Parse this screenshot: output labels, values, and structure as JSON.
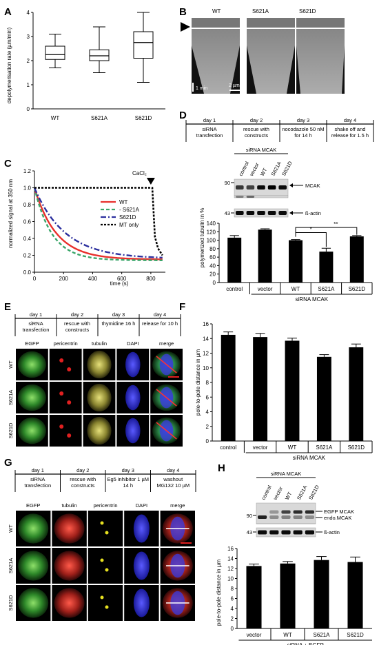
{
  "panels": {
    "A": "A",
    "B": "B",
    "C": "C",
    "D": "D",
    "E": "E",
    "F": "F",
    "G": "G",
    "H": "H"
  },
  "panel_a": {
    "chart_data": {
      "type": "boxplot",
      "categories": [
        "WT",
        "S621A",
        "S621D"
      ],
      "boxes": [
        {
          "name": "WT",
          "min": 1.7,
          "q1": 2.05,
          "median": 2.25,
          "q3": 2.6,
          "max": 3.1
        },
        {
          "name": "S621A",
          "min": 1.5,
          "q1": 2.0,
          "median": 2.2,
          "q3": 2.45,
          "max": 3.4
        },
        {
          "name": "S621D",
          "min": 1.1,
          "q1": 2.1,
          "median": 2.75,
          "q3": 3.2,
          "max": 4.0
        }
      ],
      "ylabel": "depolymerisation rate (µm/min)",
      "ylim": [
        0,
        4
      ],
      "yticks": [
        "0",
        "1",
        "2",
        "3",
        "4"
      ]
    }
  },
  "panel_b": {
    "labels": [
      "WT",
      "S621A",
      "S621D"
    ],
    "time_scale": "1 min",
    "length_scale": "2 µm"
  },
  "panel_c": {
    "chart_data": {
      "type": "line",
      "xlabel": "time (s)",
      "ylabel": "normalized signal at 350 nm",
      "xlim": [
        0,
        900
      ],
      "ylim": [
        0,
        1.2
      ],
      "xticks": [
        "0",
        "200",
        "400",
        "600",
        "800"
      ],
      "yticks": [
        "0.0",
        "0.2",
        "0.4",
        "0.6",
        "0.8",
        "1.0",
        "1.2"
      ],
      "annotation": "CaCl₂",
      "legend_position": "right",
      "series": [
        {
          "name": "WT",
          "color": "#e8302c",
          "tau": 150,
          "plateau": 0.15
        },
        {
          "name": "S621A",
          "color": "#3aa66a",
          "tau": 120,
          "plateau": 0.14
        },
        {
          "name": "S621D",
          "color": "#2b2f9e",
          "tau": 210,
          "plateau": 0.16
        },
        {
          "name": "MT only",
          "color": "#000000"
        }
      ]
    }
  },
  "panel_d": {
    "timeline": [
      {
        "day": "day 1",
        "text": [
          "siRNA",
          "transfection"
        ]
      },
      {
        "day": "day 2",
        "text": [
          "rescue with",
          "constructs"
        ]
      },
      {
        "day": "day 3",
        "text": [
          "nocodazole 50 nM",
          "for 14 h"
        ]
      },
      {
        "day": "day 4",
        "text": [
          "shake off and",
          "release for 1.5 h"
        ]
      }
    ],
    "blot": {
      "header": "siRNA MCAK",
      "lanes": [
        "control",
        "vector",
        "WT",
        "S621A",
        "S621D"
      ],
      "markers": [
        "90",
        "43"
      ],
      "bands": [
        "MCAK",
        "ß-actin"
      ]
    },
    "chart_data": {
      "type": "bar",
      "categories": [
        "control",
        "vector",
        "WT",
        "S621A",
        "S621D"
      ],
      "values": [
        106,
        125,
        100,
        73,
        109
      ],
      "errors": [
        5,
        2,
        1.5,
        8,
        2
      ],
      "ylabel": "polymerized tubulin in %",
      "ylim": [
        0,
        140
      ],
      "yticks": [
        "0",
        "20",
        "40",
        "60",
        "80",
        "100",
        "120",
        "140"
      ],
      "group_label": "siRNA MCAK",
      "significance": [
        "*",
        "**"
      ]
    }
  },
  "panel_e": {
    "timeline": [
      {
        "day": "day 1",
        "text": [
          "siRNA",
          "transfection"
        ]
      },
      {
        "day": "day 2",
        "text": [
          "rescue with",
          "constructs"
        ]
      },
      {
        "day": "day 3",
        "text": [
          "thymidine  16 h"
        ]
      },
      {
        "day": "day 4",
        "text": [
          "release for 10 h"
        ]
      }
    ],
    "columns": [
      "EGFP",
      "pericentrin",
      "tubulin",
      "DAPI",
      "merge"
    ],
    "rows": [
      "WT",
      "S621A",
      "S621D"
    ]
  },
  "panel_f": {
    "chart_data": {
      "type": "bar",
      "categories": [
        "control",
        "vector",
        "WT",
        "S621A",
        "S621D"
      ],
      "values": [
        14.5,
        14.2,
        13.7,
        11.5,
        12.8
      ],
      "errors": [
        0.4,
        0.5,
        0.35,
        0.3,
        0.45
      ],
      "ylabel": "pole-to-pole distance in µm",
      "ylim": [
        0,
        16
      ],
      "yticks": [
        "0",
        "2",
        "4",
        "6",
        "8",
        "10",
        "12",
        "14",
        "16"
      ],
      "group_label": "siRNA MCAK"
    }
  },
  "panel_g": {
    "timeline": [
      {
        "day": "day 1",
        "text": [
          "siRNA",
          "transfection"
        ]
      },
      {
        "day": "day 2",
        "text": [
          "rescue with",
          "constructs"
        ]
      },
      {
        "day": "day 3",
        "text": [
          "Eg5 inhibitor 1 µM",
          "14 h"
        ]
      },
      {
        "day": "day 4",
        "text": [
          "washout",
          "MG132 10 µM"
        ]
      }
    ],
    "columns": [
      "EGFP",
      "tubulin",
      "pericentrin",
      "DAPI",
      "merge"
    ],
    "rows": [
      "WT",
      "S621A",
      "S621D"
    ]
  },
  "panel_h": {
    "blot": {
      "header": "siRNA MCAK",
      "lanes": [
        "control",
        "vector",
        "WT",
        "S621A",
        "S621D"
      ],
      "markers": [
        "90",
        "43"
      ],
      "bands": [
        "EGFP MCAK",
        "endo.MCAK",
        "ß-actin"
      ]
    },
    "chart_data": {
      "type": "bar",
      "categories": [
        "vector",
        "WT",
        "S621A",
        "S621D"
      ],
      "values": [
        12.5,
        13.0,
        13.7,
        13.3
      ],
      "errors": [
        0.4,
        0.4,
        0.7,
        1.0
      ],
      "ylabel": "pole-to-pole distance in µm",
      "ylim": [
        0,
        16
      ],
      "yticks": [
        "0",
        "2",
        "4",
        "6",
        "8",
        "10",
        "12",
        "14",
        "16"
      ],
      "group_label": "siRNA + EGFP"
    }
  }
}
